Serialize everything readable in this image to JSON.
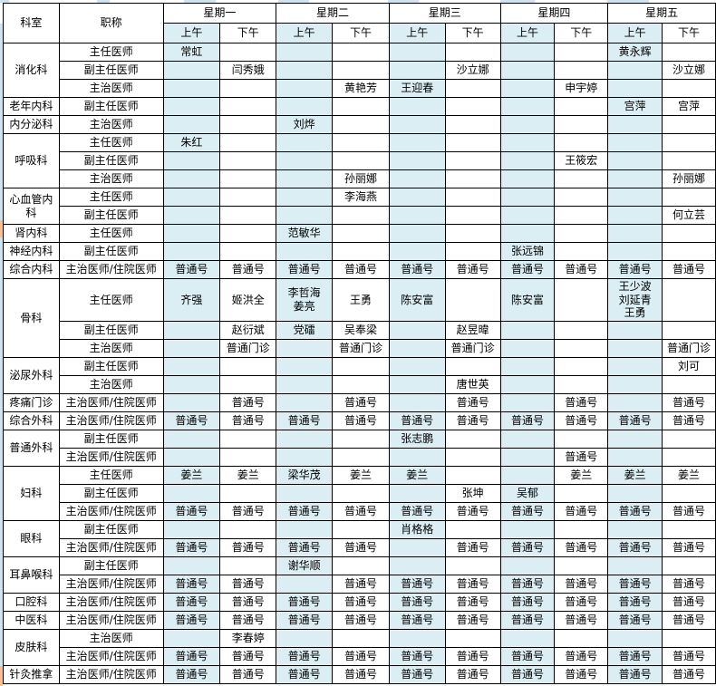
{
  "app": {
    "description": "hospital outpatient weekly schedule spreadsheet"
  },
  "colors": {
    "am_column_bg": "#daeef3",
    "pm_column_bg": "#ffffff",
    "grid_border": "#000000",
    "edge_sliver_blue": "#cfe4ee",
    "edge_sliver_orange": "#fabf8f"
  },
  "table": {
    "headers": {
      "dept": "科室",
      "title": "职称",
      "days": [
        "星期一",
        "星期二",
        "星期三",
        "星期四",
        "星期五"
      ],
      "halfday_am": "上午",
      "halfday_pm": "下午"
    },
    "dept_groups": [
      {
        "dept": "消化科",
        "rows": [
          {
            "title": "主任医师",
            "cells": [
              "常虹",
              "",
              "",
              "",
              "",
              "",
              "",
              "",
              "黄永辉",
              ""
            ]
          },
          {
            "title": "副主任医师",
            "cells": [
              "",
              "闫秀娥",
              "",
              "",
              "",
              "沙立娜",
              "",
              "",
              "",
              "沙立娜"
            ]
          },
          {
            "title": "主治医师",
            "cells": [
              "",
              "",
              "",
              "黄艳芳",
              "王迎春",
              "",
              "",
              "申宇婷",
              "",
              ""
            ]
          }
        ]
      },
      {
        "dept": "老年内科",
        "rows": [
          {
            "title": "副主任医师",
            "cells": [
              "",
              "",
              "",
              "",
              "",
              "",
              "",
              "",
              "宫萍",
              "宫萍"
            ]
          }
        ]
      },
      {
        "dept": "内分泌科",
        "rows": [
          {
            "title": "主治医师",
            "cells": [
              "",
              "",
              "刘烨",
              "",
              "",
              "",
              "",
              "",
              "",
              ""
            ]
          }
        ]
      },
      {
        "dept": "呼吸科",
        "rows": [
          {
            "title": "主任医师",
            "cells": [
              "朱红",
              "",
              "",
              "",
              "",
              "",
              "",
              "",
              "",
              ""
            ]
          },
          {
            "title": "副主任医师",
            "cells": [
              "",
              "",
              "",
              "",
              "",
              "",
              "",
              "王筱宏",
              "",
              ""
            ]
          },
          {
            "title": "主治医师",
            "cells": [
              "",
              "",
              "",
              "孙丽娜",
              "",
              "",
              "",
              "",
              "",
              "孙丽娜"
            ]
          }
        ]
      },
      {
        "dept": "心血管内科",
        "rows": [
          {
            "title": "主任医师",
            "cells": [
              "",
              "",
              "",
              "李海燕",
              "",
              "",
              "",
              "",
              "",
              ""
            ]
          },
          {
            "title": "副主任医师",
            "cells": [
              "",
              "",
              "",
              "",
              "",
              "",
              "",
              "",
              "",
              "何立芸"
            ]
          }
        ]
      },
      {
        "dept": "肾内科",
        "rows": [
          {
            "title": "主任医师",
            "cells": [
              "",
              "",
              "范敏华",
              "",
              "",
              "",
              "",
              "",
              "",
              ""
            ]
          }
        ]
      },
      {
        "dept": "神经内科",
        "rows": [
          {
            "title": "副主任医师",
            "cells": [
              "",
              "",
              "",
              "",
              "",
              "",
              "张远锦",
              "",
              "",
              ""
            ]
          }
        ]
      },
      {
        "dept": "综合内科",
        "rows": [
          {
            "title": "主治医师/住院医师",
            "cells": [
              "普通号",
              "普通号",
              "普通号",
              "普通号",
              "普通号",
              "普通号",
              "普通号",
              "普通号",
              "普通号",
              "普通号"
            ]
          }
        ]
      },
      {
        "dept": "骨科",
        "rows": [
          {
            "title": "主任医师",
            "cells": [
              "齐强",
              "姬洪全",
              "李哲海\n姜亮",
              "王勇",
              "陈安富",
              "",
              "陈安富",
              "",
              "王少波\n刘延青\n王勇",
              ""
            ]
          },
          {
            "title": "副主任医师",
            "cells": [
              "",
              "赵衍斌",
              "党礌",
              "吴奉梁",
              "",
              "赵昱暐",
              "",
              "",
              "",
              ""
            ]
          },
          {
            "title": "主治医师",
            "cells": [
              "",
              "普通门诊",
              "",
              "普通门诊",
              "",
              "普通门诊",
              "",
              "",
              "",
              "普通门诊"
            ]
          }
        ]
      },
      {
        "dept": "泌尿外科",
        "rows": [
          {
            "title": "副主任医师",
            "cells": [
              "",
              "",
              "",
              "",
              "",
              "",
              "",
              "",
              "",
              "刘可"
            ]
          },
          {
            "title": "主治医师",
            "cells": [
              "",
              "",
              "",
              "",
              "",
              "唐世英",
              "",
              "",
              "",
              ""
            ]
          }
        ]
      },
      {
        "dept": "疼痛门诊",
        "rows": [
          {
            "title": "主治医师/住院医师",
            "cells": [
              "",
              "普通号",
              "",
              "普通号",
              "",
              "普通号",
              "",
              "普通号",
              "",
              "普通号"
            ]
          }
        ]
      },
      {
        "dept": "综合外科",
        "rows": [
          {
            "title": "主治医师/住院医师",
            "cells": [
              "普通号",
              "普通号",
              "普通号",
              "普通号",
              "普通号",
              "普通号",
              "普通号",
              "普通号",
              "普通号",
              "普通号"
            ]
          }
        ]
      },
      {
        "dept": "普通外科",
        "rows": [
          {
            "title": "副主任医师",
            "cells": [
              "",
              "",
              "",
              "",
              "张志鹏",
              "",
              "",
              "",
              "",
              ""
            ]
          },
          {
            "title": "主治医师/住院医师",
            "cells": [
              "",
              "",
              "",
              "",
              "",
              "",
              "",
              "普通号",
              "",
              ""
            ]
          }
        ]
      },
      {
        "dept": "妇科",
        "rows": [
          {
            "title": "主任医师",
            "cells": [
              "姜兰",
              "姜兰",
              "梁华茂",
              "姜兰",
              "姜兰",
              "",
              "",
              "姜兰",
              "姜兰",
              "姜兰"
            ]
          },
          {
            "title": "副主任医师",
            "cells": [
              "",
              "",
              "",
              "",
              "",
              "张坤",
              "吴郁",
              "",
              "",
              ""
            ]
          },
          {
            "title": "主治医师/住院医师",
            "cells": [
              "普通号",
              "普通号",
              "普通号",
              "普通号",
              "普通号",
              "普通号",
              "普通号",
              "普通号",
              "普通号",
              "普通号"
            ]
          }
        ]
      },
      {
        "dept": "眼科",
        "rows": [
          {
            "title": "副主任医师",
            "cells": [
              "",
              "",
              "",
              "",
              "肖格格",
              "",
              "",
              "",
              "",
              ""
            ]
          },
          {
            "title": "主治医师/住院医师",
            "cells": [
              "普通号",
              "普通号",
              "普通号",
              "普通号",
              "",
              "普通号",
              "普通号",
              "普通号",
              "普通号",
              "普通号"
            ]
          }
        ]
      },
      {
        "dept": "耳鼻喉科",
        "rows": [
          {
            "title": "副主任医师",
            "cells": [
              "",
              "",
              "谢华顺",
              "",
              "",
              "",
              "",
              "",
              "",
              ""
            ]
          },
          {
            "title": "主治医师/住院医师",
            "cells": [
              "普通号",
              "普通号",
              "",
              "普通号",
              "普通号",
              "普通号",
              "普通号",
              "普通号",
              "普通号",
              "普通号"
            ]
          }
        ]
      },
      {
        "dept": "口腔科",
        "rows": [
          {
            "title": "主治医师/住院医师",
            "cells": [
              "普通号",
              "普通号",
              "普通号",
              "普通号",
              "普通号",
              "普通号",
              "普通号",
              "普通号",
              "普通号",
              "普通号"
            ]
          }
        ]
      },
      {
        "dept": "中医科",
        "rows": [
          {
            "title": "主治医师/住院医师",
            "cells": [
              "普通号",
              "普通号",
              "普通号",
              "普通号",
              "普通号",
              "普通号",
              "普通号",
              "普通号",
              "普通号",
              "普通号"
            ]
          }
        ]
      },
      {
        "dept": "皮肤科",
        "rows": [
          {
            "title": "主治医师",
            "cells": [
              "",
              "李春婷",
              "",
              "",
              "",
              "",
              "",
              "",
              "",
              ""
            ]
          },
          {
            "title": "主治医师/住院医师",
            "cells": [
              "普通号",
              "普通号",
              "普通号",
              "普通号",
              "普通号",
              "普通号",
              "普通号",
              "普通号",
              "普通号",
              "普通号"
            ]
          }
        ]
      },
      {
        "dept": "针灸推拿",
        "rows": [
          {
            "title": "主治医师/住院医师",
            "cells": [
              "普通号",
              "普通号",
              "普通号",
              "普通号",
              "普通号",
              "普通号",
              "普通号",
              "普通号",
              "普通号",
              "普通号"
            ]
          }
        ]
      }
    ]
  }
}
